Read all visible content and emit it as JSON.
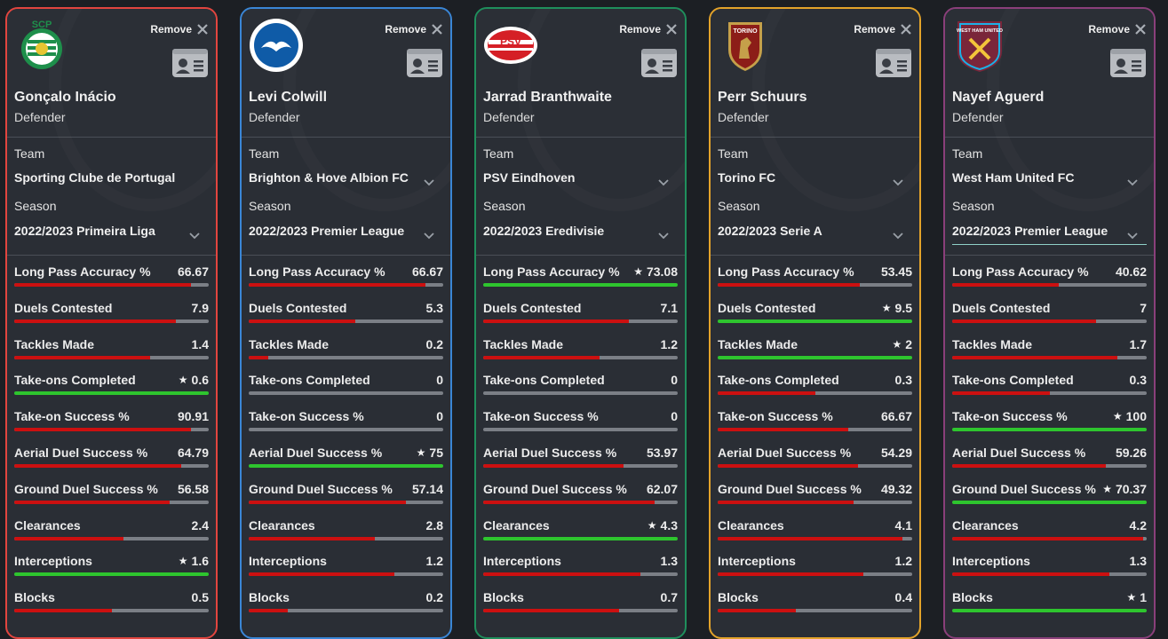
{
  "remove_label": "Remove",
  "team_label": "Team",
  "season_label": "Season",
  "colors": {
    "best": "#2ec52e",
    "normal": "#cc1010",
    "track": "#7b7f86"
  },
  "cards": [
    {
      "border_color": "#e2453f",
      "logo_icon": "sporting-cp-crest",
      "logo_text": "SCP",
      "name": "Gonçalo Inácio",
      "position": "Defender",
      "team": "Sporting Clube de Portugal",
      "season": "2022/2023 Primeira Liga",
      "stats": [
        {
          "name": "Long Pass Accuracy %",
          "value": "66.67",
          "level": 0.91,
          "best": false
        },
        {
          "name": "Duels Contested",
          "value": "7.9",
          "level": 0.83,
          "best": false
        },
        {
          "name": "Tackles Made",
          "value": "1.4",
          "level": 0.7,
          "best": false
        },
        {
          "name": "Take-ons Completed",
          "value": "0.6",
          "level": 1.0,
          "best": true
        },
        {
          "name": "Take-on Success %",
          "value": "90.91",
          "level": 0.91,
          "best": false
        },
        {
          "name": "Aerial Duel Success %",
          "value": "64.79",
          "level": 0.86,
          "best": false
        },
        {
          "name": "Ground Duel Success %",
          "value": "56.58",
          "level": 0.8,
          "best": false
        },
        {
          "name": "Clearances",
          "value": "2.4",
          "level": 0.56,
          "best": false
        },
        {
          "name": "Interceptions",
          "value": "1.6",
          "level": 1.0,
          "best": true
        },
        {
          "name": "Blocks",
          "value": "0.5",
          "level": 0.5,
          "best": false
        }
      ]
    },
    {
      "border_color": "#3a86d6",
      "logo_icon": "brighton-crest",
      "logo_text": "",
      "name": "Levi Colwill",
      "position": "Defender",
      "team": "Brighton & Hove Albion FC",
      "season": "2022/2023 Premier League",
      "stats": [
        {
          "name": "Long Pass Accuracy %",
          "value": "66.67",
          "level": 0.91,
          "best": false
        },
        {
          "name": "Duels Contested",
          "value": "5.3",
          "level": 0.55,
          "best": false
        },
        {
          "name": "Tackles Made",
          "value": "0.2",
          "level": 0.1,
          "best": false
        },
        {
          "name": "Take-ons Completed",
          "value": "0",
          "level": 0,
          "best": false
        },
        {
          "name": "Take-on Success %",
          "value": "0",
          "level": 0,
          "best": false
        },
        {
          "name": "Aerial Duel Success %",
          "value": "75",
          "level": 1.0,
          "best": true
        },
        {
          "name": "Ground Duel Success %",
          "value": "57.14",
          "level": 0.81,
          "best": false
        },
        {
          "name": "Clearances",
          "value": "2.8",
          "level": 0.65,
          "best": false
        },
        {
          "name": "Interceptions",
          "value": "1.2",
          "level": 0.75,
          "best": false
        },
        {
          "name": "Blocks",
          "value": "0.2",
          "level": 0.2,
          "best": false
        }
      ]
    },
    {
      "border_color": "#1f8f5c",
      "logo_icon": "psv-crest",
      "logo_text": "PSV",
      "name": "Jarrad Branthwaite",
      "position": "Defender",
      "team": "PSV Eindhoven",
      "season": "2022/2023 Eredivisie",
      "stats": [
        {
          "name": "Long Pass Accuracy %",
          "value": "73.08",
          "level": 1.0,
          "best": true
        },
        {
          "name": "Duels Contested",
          "value": "7.1",
          "level": 0.75,
          "best": false
        },
        {
          "name": "Tackles Made",
          "value": "1.2",
          "level": 0.6,
          "best": false
        },
        {
          "name": "Take-ons Completed",
          "value": "0",
          "level": 0,
          "best": false
        },
        {
          "name": "Take-on Success %",
          "value": "0",
          "level": 0,
          "best": false
        },
        {
          "name": "Aerial Duel Success %",
          "value": "53.97",
          "level": 0.72,
          "best": false
        },
        {
          "name": "Ground Duel Success %",
          "value": "62.07",
          "level": 0.88,
          "best": false
        },
        {
          "name": "Clearances",
          "value": "4.3",
          "level": 1.0,
          "best": true
        },
        {
          "name": "Interceptions",
          "value": "1.3",
          "level": 0.81,
          "best": false
        },
        {
          "name": "Blocks",
          "value": "0.7",
          "level": 0.7,
          "best": false
        }
      ]
    },
    {
      "border_color": "#e3a32a",
      "logo_icon": "torino-crest",
      "logo_text": "TORINO",
      "name": "Perr Schuurs",
      "position": "Defender",
      "team": "Torino FC",
      "season": "2022/2023 Serie A",
      "stats": [
        {
          "name": "Long Pass Accuracy %",
          "value": "53.45",
          "level": 0.73,
          "best": false
        },
        {
          "name": "Duels Contested",
          "value": "9.5",
          "level": 1.0,
          "best": true
        },
        {
          "name": "Tackles Made",
          "value": "2",
          "level": 1.0,
          "best": true
        },
        {
          "name": "Take-ons Completed",
          "value": "0.3",
          "level": 0.5,
          "best": false
        },
        {
          "name": "Take-on Success %",
          "value": "66.67",
          "level": 0.67,
          "best": false
        },
        {
          "name": "Aerial Duel Success %",
          "value": "54.29",
          "level": 0.72,
          "best": false
        },
        {
          "name": "Ground Duel Success %",
          "value": "49.32",
          "level": 0.7,
          "best": false
        },
        {
          "name": "Clearances",
          "value": "4.1",
          "level": 0.95,
          "best": false
        },
        {
          "name": "Interceptions",
          "value": "1.2",
          "level": 0.75,
          "best": false
        },
        {
          "name": "Blocks",
          "value": "0.4",
          "level": 0.4,
          "best": false
        }
      ]
    },
    {
      "border_color": "#8a3f7a",
      "logo_icon": "west-ham-crest",
      "logo_text": "WEST HAM UNITED",
      "name": "Nayef Aguerd",
      "position": "Defender",
      "team": "West Ham United FC",
      "season": "2022/2023 Premier League",
      "stats": [
        {
          "name": "Long Pass Accuracy %",
          "value": "40.62",
          "level": 0.55,
          "best": false
        },
        {
          "name": "Duels Contested",
          "value": "7",
          "level": 0.74,
          "best": false
        },
        {
          "name": "Tackles Made",
          "value": "1.7",
          "level": 0.85,
          "best": false
        },
        {
          "name": "Take-ons Completed",
          "value": "0.3",
          "level": 0.5,
          "best": false
        },
        {
          "name": "Take-on Success %",
          "value": "100",
          "level": 1.0,
          "best": true
        },
        {
          "name": "Aerial Duel Success %",
          "value": "59.26",
          "level": 0.79,
          "best": false
        },
        {
          "name": "Ground Duel Success %",
          "value": "70.37",
          "level": 1.0,
          "best": true
        },
        {
          "name": "Clearances",
          "value": "4.2",
          "level": 0.98,
          "best": false
        },
        {
          "name": "Interceptions",
          "value": "1.3",
          "level": 0.81,
          "best": false
        },
        {
          "name": "Blocks",
          "value": "1",
          "level": 1.0,
          "best": true
        }
      ]
    }
  ]
}
